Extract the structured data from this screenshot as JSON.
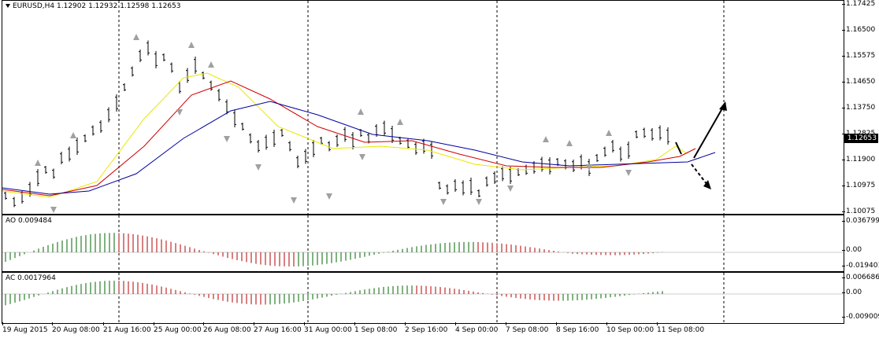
{
  "main": {
    "symbol_label": "EURUSD,H4",
    "ohlc": [
      "1.12902",
      "1.12932",
      "1.12598",
      "1.12653"
    ],
    "current_price": "1.12653",
    "price_ticks": [
      "1.17425",
      "1.16500",
      "1.15575",
      "1.14650",
      "1.13750",
      "1.12825",
      "1.11900",
      "1.10975",
      "1.10075"
    ]
  },
  "ao": {
    "label": "AO 0.009484",
    "ticks": [
      "0.036799",
      "0.00",
      "-0.019401"
    ]
  },
  "ac": {
    "label": "AC 0.0017964",
    "ticks": [
      "0.006686",
      "0.00",
      "-0.009009"
    ]
  },
  "time_axis": [
    "19 Aug 2015",
    "20 Aug 08:00",
    "21 Aug 16:00",
    "25 Aug 00:00",
    "26 Aug 08:00",
    "27 Aug 16:00",
    "31 Aug 00:00",
    "1 Sep 08:00",
    "2 Sep 16:00",
    "4 Sep 00:00",
    "7 Sep 08:00",
    "8 Sep 16:00",
    "10 Sep 00:00",
    "11 Sep 08:00"
  ],
  "colors": {
    "alligator_lips": "#e8e800",
    "alligator_teeth": "#d00000",
    "alligator_jaw": "#0000a0",
    "ao_up": "#006400",
    "ao_down": "#b00000",
    "fractal": "#a0a0a0",
    "grid": "#000000"
  }
}
